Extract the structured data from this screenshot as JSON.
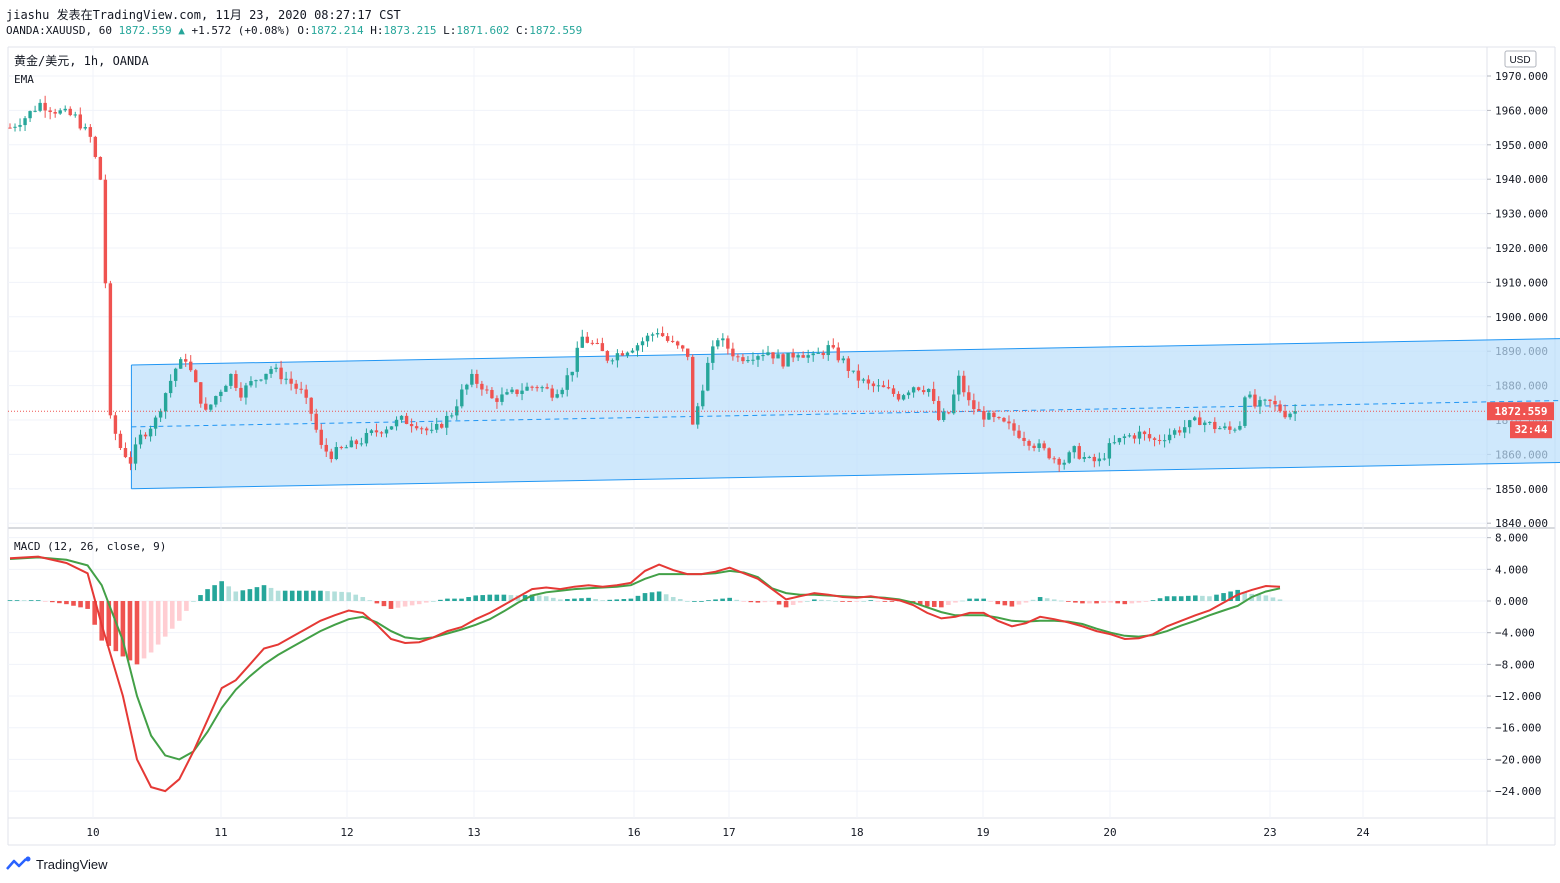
{
  "header": {
    "line1": "jiashu 发表在TradingView.com, 11月 23, 2020 08:27:17 CST",
    "symbol": "OANDA:XAUUSD, 60",
    "last": "1872.559",
    "arrow": "▲",
    "change": "+1.572 (+0.08%)",
    "o_label": "O:",
    "o": "1872.214",
    "h_label": "H:",
    "h": "1873.215",
    "l_label": "L:",
    "l": "1871.602",
    "c_label": "C:",
    "c": "1872.559"
  },
  "pane_labels": {
    "main_title": "黄金/美元, 1h, OANDA",
    "ema": "EMA",
    "macd": "MACD (12, 26, close, 9)"
  },
  "currency": "USD",
  "price_badge": "1872.559",
  "timer_badge": "32:44",
  "brand": "TradingView",
  "colors": {
    "up": "#26a69a",
    "down": "#ef5350",
    "channel_line": "#2196f3",
    "channel_fill": "#bbdefb",
    "macd": "#e53935",
    "signal": "#43a047",
    "hist_up_strong": "#26a69a",
    "hist_up_weak": "#b2dfdb",
    "hist_down_strong": "#ef5350",
    "hist_down_weak": "#ffcdd2"
  },
  "chart_data": [
    {
      "type": "candlestick",
      "title": "黄金/美元, 1h, OANDA",
      "x_ticks": [
        "10",
        "11",
        "12",
        "13",
        "16",
        "17",
        "18",
        "19",
        "20",
        "23",
        "24"
      ],
      "y_ticks": [
        1840,
        1850,
        1860,
        1870,
        1880,
        1890,
        1900,
        1910,
        1920,
        1930,
        1940,
        1950,
        1960,
        1970
      ],
      "ylim": [
        1838,
        1975
      ],
      "last_price": 1872.559,
      "close_path": [
        [
          0,
          1955
        ],
        [
          3,
          1958
        ],
        [
          6,
          1962
        ],
        [
          9,
          1960
        ],
        [
          13,
          1958
        ],
        [
          16,
          1952
        ],
        [
          18,
          1940
        ],
        [
          19,
          1910
        ],
        [
          20,
          1870
        ],
        [
          22,
          1862
        ],
        [
          24,
          1858
        ],
        [
          26,
          1865
        ],
        [
          29,
          1870
        ],
        [
          31,
          1878
        ],
        [
          33,
          1885
        ],
        [
          35,
          1888
        ],
        [
          37,
          1880
        ],
        [
          39,
          1872
        ],
        [
          41,
          1877
        ],
        [
          44,
          1883
        ],
        [
          46,
          1878
        ],
        [
          49,
          1882
        ],
        [
          52,
          1885
        ],
        [
          55,
          1882
        ],
        [
          58,
          1878
        ],
        [
          60,
          1872
        ],
        [
          62,
          1862
        ],
        [
          64,
          1860
        ],
        [
          67,
          1862
        ],
        [
          70,
          1864
        ],
        [
          72,
          1866
        ],
        [
          75,
          1868
        ],
        [
          78,
          1870
        ],
        [
          81,
          1869
        ],
        [
          84,
          1866
        ],
        [
          86,
          1869
        ],
        [
          88,
          1872
        ],
        [
          90,
          1878
        ],
        [
          92,
          1882
        ],
        [
          94,
          1880
        ],
        [
          96,
          1876
        ],
        [
          99,
          1877
        ],
        [
          102,
          1879
        ],
        [
          105,
          1880
        ],
        [
          108,
          1878
        ],
        [
          110,
          1880
        ],
        [
          112,
          1885
        ],
        [
          114,
          1894
        ],
        [
          117,
          1891
        ],
        [
          119,
          1888
        ],
        [
          122,
          1890
        ],
        [
          125,
          1892
        ],
        [
          127,
          1894
        ],
        [
          129,
          1896
        ],
        [
          131,
          1893
        ],
        [
          133,
          1891
        ],
        [
          135,
          1889
        ],
        [
          136,
          1868
        ],
        [
          137,
          1874
        ],
        [
          139,
          1886
        ],
        [
          141,
          1894
        ],
        [
          143,
          1891
        ],
        [
          145,
          1888
        ],
        [
          148,
          1889
        ],
        [
          151,
          1890
        ],
        [
          154,
          1887
        ],
        [
          157,
          1890
        ],
        [
          160,
          1888
        ],
        [
          163,
          1891
        ],
        [
          166,
          1887
        ],
        [
          168,
          1883
        ],
        [
          171,
          1880
        ],
        [
          174,
          1879
        ],
        [
          177,
          1877
        ],
        [
          180,
          1880
        ],
        [
          183,
          1879
        ],
        [
          185,
          1870
        ],
        [
          187,
          1872
        ],
        [
          189,
          1882
        ],
        [
          191,
          1875
        ],
        [
          193,
          1872
        ],
        [
          196,
          1870
        ],
        [
          199,
          1868
        ],
        [
          202,
          1865
        ],
        [
          205,
          1862
        ],
        [
          208,
          1859
        ],
        [
          210,
          1858
        ],
        [
          212,
          1861
        ],
        [
          215,
          1858
        ],
        [
          217,
          1858
        ],
        [
          219,
          1862
        ],
        [
          222,
          1865
        ],
        [
          225,
          1866
        ],
        [
          228,
          1864
        ],
        [
          231,
          1866
        ],
        [
          234,
          1868
        ],
        [
          237,
          1870
        ],
        [
          240,
          1868
        ],
        [
          243,
          1867
        ],
        [
          245,
          1869
        ],
        [
          246,
          1878
        ],
        [
          248,
          1874
        ],
        [
          251,
          1875
        ],
        [
          254,
          1872
        ],
        [
          256,
          1872.559
        ]
      ],
      "channel": {
        "upper": [
          [
            1850.8,
            1886
          ],
          [
            1917.5,
            1919
          ]
        ],
        "middle": [
          [
            1850.8,
            1868
          ],
          [
            1917.5,
            1901
          ]
        ],
        "lower": [
          [
            1850.8,
            1850
          ],
          [
            1917.5,
            1883
          ]
        ]
      }
    },
    {
      "type": "macd",
      "title": "MACD (12, 26, close, 9)",
      "y_ticks": [
        8,
        4,
        0,
        -4,
        -8,
        -12,
        -16,
        -20,
        -24
      ],
      "ylim": [
        -27,
        9
      ],
      "macd_path": [
        [
          0,
          5.4
        ],
        [
          4,
          5.6
        ],
        [
          8,
          4.8
        ],
        [
          11,
          3.5
        ],
        [
          13,
          -3
        ],
        [
          16,
          -12
        ],
        [
          18,
          -20
        ],
        [
          20,
          -23.5
        ],
        [
          22,
          -24
        ],
        [
          24,
          -22.5
        ],
        [
          26,
          -19
        ],
        [
          28,
          -15
        ],
        [
          30,
          -11
        ],
        [
          32,
          -10
        ],
        [
          34,
          -8
        ],
        [
          36,
          -6
        ],
        [
          38,
          -5.5
        ],
        [
          40,
          -4.5
        ],
        [
          42,
          -3.5
        ],
        [
          44,
          -2.5
        ],
        [
          46,
          -1.8
        ],
        [
          48,
          -1.2
        ],
        [
          50,
          -1.5
        ],
        [
          52,
          -3
        ],
        [
          54,
          -4.8
        ],
        [
          56,
          -5.3
        ],
        [
          58,
          -5.2
        ],
        [
          60,
          -4.6
        ],
        [
          62,
          -3.8
        ],
        [
          64,
          -3.3
        ],
        [
          66,
          -2.3
        ],
        [
          68,
          -1.5
        ],
        [
          70,
          -0.5
        ],
        [
          72,
          0.5
        ],
        [
          74,
          1.5
        ],
        [
          76,
          1.7
        ],
        [
          78,
          1.5
        ],
        [
          80,
          1.8
        ],
        [
          82,
          2
        ],
        [
          84,
          1.8
        ],
        [
          86,
          2
        ],
        [
          88,
          2.3
        ],
        [
          90,
          3.8
        ],
        [
          92,
          4.6
        ],
        [
          94,
          3.9
        ],
        [
          96,
          3.4
        ],
        [
          98,
          3.4
        ],
        [
          100,
          3.7
        ],
        [
          102,
          4.2
        ],
        [
          104,
          3.5
        ],
        [
          106,
          2.8
        ],
        [
          108,
          1.5
        ],
        [
          110,
          0.2
        ],
        [
          112,
          0.6
        ],
        [
          114,
          1
        ],
        [
          116,
          0.8
        ],
        [
          118,
          0.5
        ],
        [
          120,
          0.4
        ],
        [
          122,
          0.6
        ],
        [
          124,
          0.3
        ],
        [
          126,
          0.1
        ],
        [
          128,
          -0.5
        ],
        [
          130,
          -1.5
        ],
        [
          132,
          -2.2
        ],
        [
          134,
          -2
        ],
        [
          136,
          -1.5
        ],
        [
          138,
          -1.5
        ],
        [
          140,
          -2.5
        ],
        [
          142,
          -3.2
        ],
        [
          144,
          -2.8
        ],
        [
          146,
          -2
        ],
        [
          148,
          -2.3
        ],
        [
          150,
          -2.7
        ],
        [
          152,
          -3.2
        ],
        [
          154,
          -3.8
        ],
        [
          156,
          -4.2
        ],
        [
          158,
          -4.8
        ],
        [
          160,
          -4.7
        ],
        [
          162,
          -4.2
        ],
        [
          164,
          -3.2
        ],
        [
          166,
          -2.5
        ],
        [
          168,
          -1.8
        ],
        [
          170,
          -1.2
        ],
        [
          172,
          -0.2
        ],
        [
          174,
          0.8
        ],
        [
          176,
          1.4
        ],
        [
          178,
          1.9
        ],
        [
          180,
          1.8
        ]
      ],
      "signal_path": [
        [
          0,
          5.3
        ],
        [
          4,
          5.5
        ],
        [
          8,
          5.2
        ],
        [
          11,
          4.5
        ],
        [
          13,
          2
        ],
        [
          16,
          -5
        ],
        [
          18,
          -12
        ],
        [
          20,
          -17
        ],
        [
          22,
          -19.5
        ],
        [
          24,
          -20
        ],
        [
          26,
          -19
        ],
        [
          28,
          -16.5
        ],
        [
          30,
          -13.5
        ],
        [
          32,
          -11.2
        ],
        [
          34,
          -9.5
        ],
        [
          36,
          -8
        ],
        [
          38,
          -6.8
        ],
        [
          40,
          -5.8
        ],
        [
          42,
          -4.8
        ],
        [
          44,
          -3.8
        ],
        [
          46,
          -3
        ],
        [
          48,
          -2.3
        ],
        [
          50,
          -2
        ],
        [
          52,
          -2.7
        ],
        [
          54,
          -3.8
        ],
        [
          56,
          -4.6
        ],
        [
          58,
          -4.8
        ],
        [
          60,
          -4.6
        ],
        [
          62,
          -4.1
        ],
        [
          64,
          -3.6
        ],
        [
          66,
          -3
        ],
        [
          68,
          -2.3
        ],
        [
          70,
          -1.3
        ],
        [
          72,
          -0.2
        ],
        [
          74,
          0.7
        ],
        [
          76,
          1.1
        ],
        [
          78,
          1.3
        ],
        [
          80,
          1.5
        ],
        [
          82,
          1.6
        ],
        [
          84,
          1.7
        ],
        [
          86,
          1.8
        ],
        [
          88,
          2
        ],
        [
          90,
          2.8
        ],
        [
          92,
          3.4
        ],
        [
          94,
          3.4
        ],
        [
          96,
          3.4
        ],
        [
          98,
          3.4
        ],
        [
          100,
          3.5
        ],
        [
          102,
          3.8
        ],
        [
          104,
          3.6
        ],
        [
          106,
          3
        ],
        [
          108,
          1.6
        ],
        [
          110,
          1
        ],
        [
          112,
          0.8
        ],
        [
          114,
          0.8
        ],
        [
          116,
          0.7
        ],
        [
          118,
          0.6
        ],
        [
          120,
          0.5
        ],
        [
          122,
          0.5
        ],
        [
          124,
          0.4
        ],
        [
          126,
          0.2
        ],
        [
          128,
          -0.2
        ],
        [
          130,
          -0.8
        ],
        [
          132,
          -1.4
        ],
        [
          134,
          -1.8
        ],
        [
          136,
          -1.8
        ],
        [
          138,
          -1.8
        ],
        [
          140,
          -2.1
        ],
        [
          142,
          -2.5
        ],
        [
          144,
          -2.6
        ],
        [
          146,
          -2.5
        ],
        [
          148,
          -2.5
        ],
        [
          150,
          -2.6
        ],
        [
          152,
          -2.9
        ],
        [
          154,
          -3.5
        ],
        [
          156,
          -4
        ],
        [
          158,
          -4.4
        ],
        [
          160,
          -4.5
        ],
        [
          162,
          -4.3
        ],
        [
          164,
          -3.8
        ],
        [
          166,
          -3.1
        ],
        [
          168,
          -2.5
        ],
        [
          170,
          -1.8
        ],
        [
          172,
          -1.2
        ],
        [
          174,
          -0.6
        ],
        [
          176,
          0.5
        ],
        [
          178,
          1.2
        ],
        [
          180,
          1.6
        ]
      ]
    }
  ]
}
